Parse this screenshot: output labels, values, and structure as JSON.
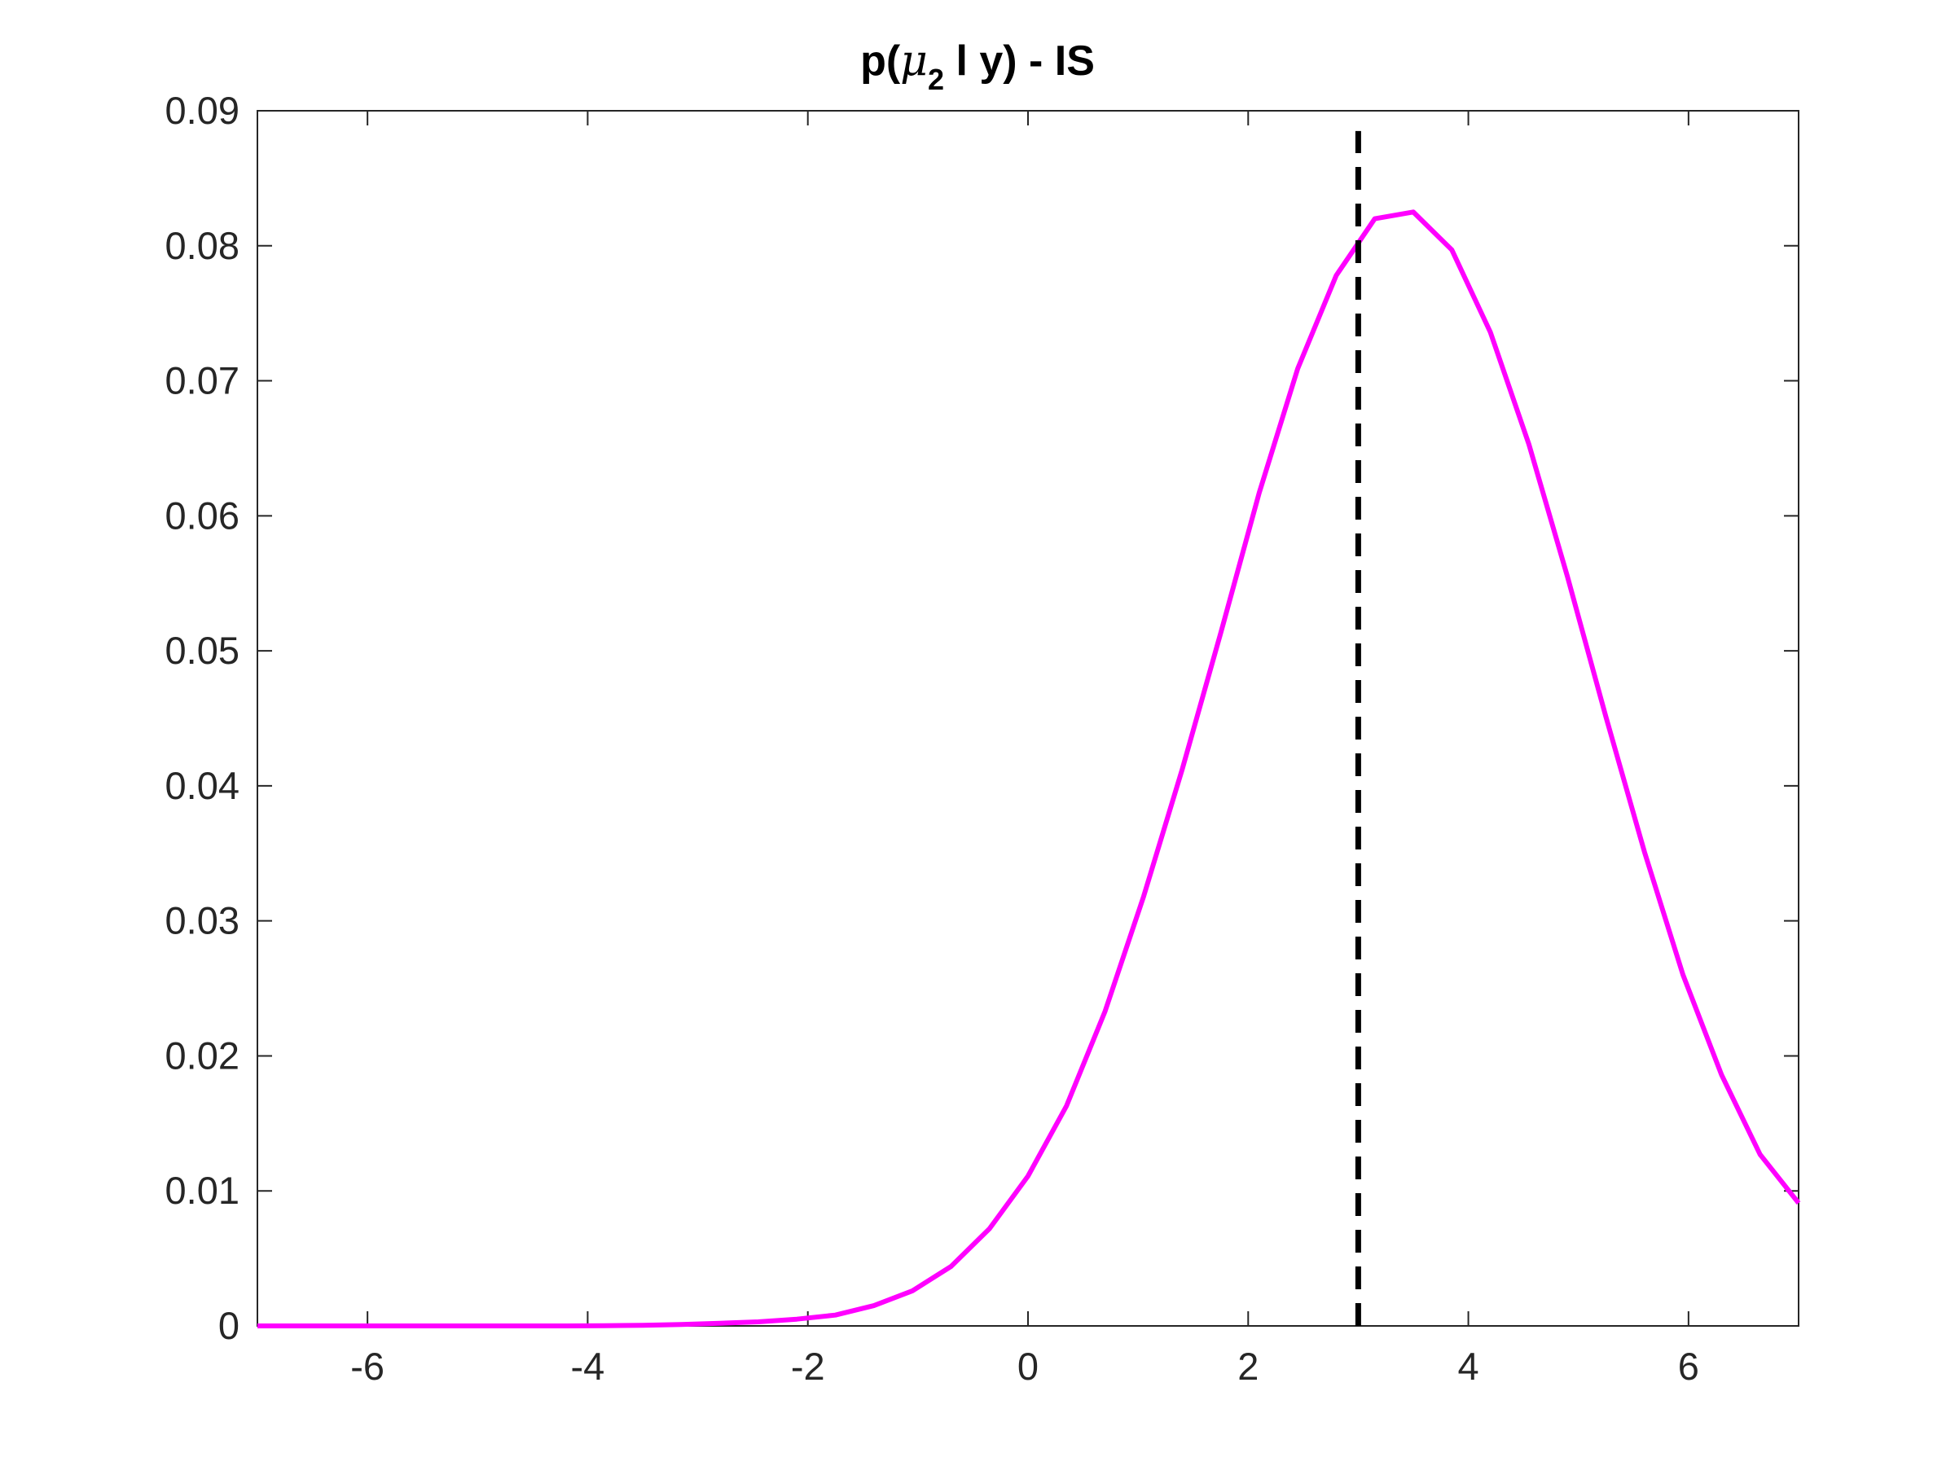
{
  "chart_data": {
    "type": "line",
    "title": {
      "prefix": "p(",
      "symbol": "μ",
      "subscript": "2",
      "suffix": " l y) - IS"
    },
    "xlabel": "",
    "ylabel": "",
    "xlim": [
      -7,
      7
    ],
    "ylim": [
      0,
      0.09
    ],
    "xticks": [
      -6,
      -4,
      -2,
      0,
      2,
      4,
      6
    ],
    "xtick_labels": [
      "-6",
      "-4",
      "-2",
      "0",
      "2",
      "4",
      "6"
    ],
    "yticks": [
      0,
      0.01,
      0.02,
      0.03,
      0.04,
      0.05,
      0.06,
      0.07,
      0.08,
      0.09
    ],
    "ytick_labels": [
      "0",
      "0.01",
      "0.02",
      "0.03",
      "0.04",
      "0.05",
      "0.06",
      "0.07",
      "0.08",
      "0.09"
    ],
    "grid": false,
    "box": true,
    "series": [
      {
        "style": "solid",
        "color": "#ff00ff",
        "x": [
          -7.0,
          -6.65,
          -6.3,
          -5.95,
          -5.6,
          -5.25,
          -4.9,
          -4.55,
          -4.2,
          -3.85,
          -3.5,
          -3.15,
          -2.8,
          -2.45,
          -2.1,
          -1.75,
          -1.4,
          -1.05,
          -0.7,
          -0.35,
          0.0,
          0.35,
          0.7,
          1.05,
          1.4,
          1.75,
          2.1,
          2.45,
          2.8,
          3.15,
          3.5,
          3.85,
          4.2,
          4.55,
          4.9,
          5.25,
          5.6,
          5.95,
          6.3,
          6.65,
          7.0
        ],
        "y": [
          0.0,
          0.0,
          0.0,
          0.0,
          0.0,
          0.0,
          0.0,
          0.0,
          0.0,
          2e-05,
          5e-05,
          0.0001,
          0.0002,
          0.0003,
          0.0005,
          0.0008,
          0.0015,
          0.0026,
          0.0044,
          0.0072,
          0.0111,
          0.0163,
          0.0233,
          0.0318,
          0.0412,
          0.0513,
          0.0617,
          0.0709,
          0.0778,
          0.082,
          0.0825,
          0.0797,
          0.0736,
          0.0653,
          0.0555,
          0.0451,
          0.0351,
          0.026,
          0.0186,
          0.0127,
          0.0091
        ]
      },
      {
        "style": "dashed",
        "color": "#000000",
        "x": [
          3.0,
          3.0
        ],
        "y": [
          0.0,
          0.0885
        ]
      }
    ]
  }
}
